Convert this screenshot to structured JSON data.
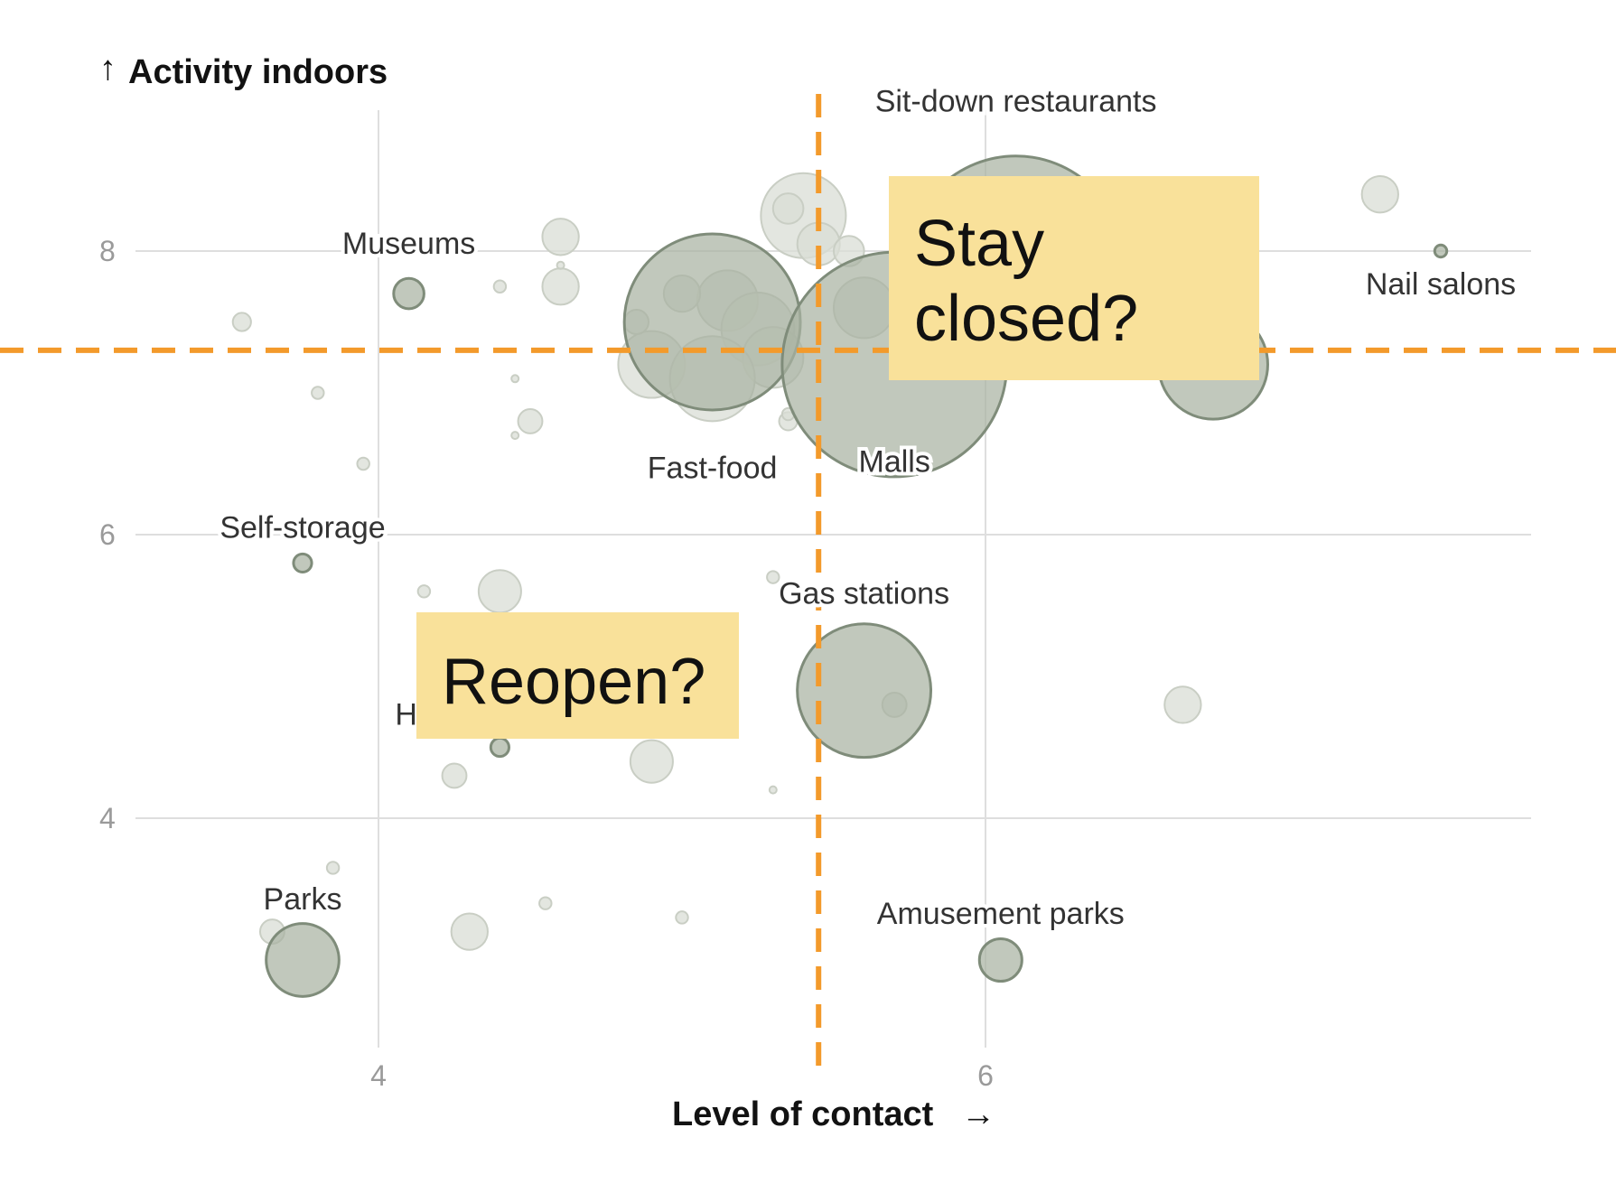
{
  "chart_data": {
    "type": "scatter",
    "ylabel": "Activity indoors",
    "xlabel": "Level of contact",
    "xlim": [
      3.2,
      7.8
    ],
    "ylim": [
      2.35,
      8.95
    ],
    "x_ticks": [
      "4",
      "6"
    ],
    "y_ticks": [
      "8",
      "6",
      "4"
    ],
    "thresholds": {
      "x": 5.45,
      "y": 7.3,
      "color": "#f39a2b"
    },
    "colors": {
      "highlight_fill": "#a9b3a2",
      "highlight_stroke": "#7f8c7a",
      "faded_fill": "#d9ddd5"
    },
    "highlighted": [
      {
        "label": "Museums",
        "x": 4.1,
        "y": 7.7,
        "r": 0.05
      },
      {
        "label": "Sit-down restaurants",
        "x": 6.1,
        "y": 7.9,
        "r": 0.36
      },
      {
        "label": "Nail salons",
        "x": 7.5,
        "y": 8.0,
        "r": 0.02
      },
      {
        "label": "Fast-food",
        "x": 5.1,
        "y": 7.5,
        "r": 0.29
      },
      {
        "label": "Malls",
        "x": 5.7,
        "y": 7.2,
        "r": 0.37
      },
      {
        "label": "",
        "x": 6.75,
        "y": 7.2,
        "r": 0.18
      },
      {
        "label": "Self-storage",
        "x": 3.75,
        "y": 5.8,
        "r": 0.03
      },
      {
        "label": "Gas stations",
        "x": 5.6,
        "y": 4.9,
        "r": 0.22
      },
      {
        "label": "H",
        "x": 4.4,
        "y": 4.5,
        "r": 0.03
      },
      {
        "label": "Parks",
        "x": 3.75,
        "y": 3.0,
        "r": 0.12
      },
      {
        "label": "Amusement parks",
        "x": 6.05,
        "y": 3.0,
        "r": 0.07
      }
    ],
    "background": [
      {
        "x": 4.6,
        "y": 8.1,
        "r": 0.06
      },
      {
        "x": 4.6,
        "y": 7.75,
        "r": 0.06
      },
      {
        "x": 3.55,
        "y": 7.5,
        "r": 0.03
      },
      {
        "x": 4.4,
        "y": 7.75,
        "r": 0.02
      },
      {
        "x": 3.8,
        "y": 7.0,
        "r": 0.02
      },
      {
        "x": 4.5,
        "y": 6.8,
        "r": 0.04
      },
      {
        "x": 3.95,
        "y": 6.5,
        "r": 0.02
      },
      {
        "x": 5.4,
        "y": 8.25,
        "r": 0.14
      },
      {
        "x": 5.35,
        "y": 8.3,
        "r": 0.05
      },
      {
        "x": 5.45,
        "y": 8.05,
        "r": 0.07
      },
      {
        "x": 5.55,
        "y": 8.0,
        "r": 0.05
      },
      {
        "x": 5.15,
        "y": 7.65,
        "r": 0.1
      },
      {
        "x": 5.25,
        "y": 7.45,
        "r": 0.12
      },
      {
        "x": 4.9,
        "y": 7.2,
        "r": 0.11
      },
      {
        "x": 5.3,
        "y": 7.25,
        "r": 0.1
      },
      {
        "x": 4.85,
        "y": 7.5,
        "r": 0.04
      },
      {
        "x": 5.0,
        "y": 7.7,
        "r": 0.06
      },
      {
        "x": 5.6,
        "y": 7.6,
        "r": 0.1
      },
      {
        "x": 5.35,
        "y": 6.8,
        "r": 0.03
      },
      {
        "x": 5.1,
        "y": 7.1,
        "r": 0.14
      },
      {
        "x": 7.3,
        "y": 8.4,
        "r": 0.06
      },
      {
        "x": 4.4,
        "y": 5.6,
        "r": 0.07
      },
      {
        "x": 4.15,
        "y": 5.6,
        "r": 0.02
      },
      {
        "x": 5.3,
        "y": 5.7,
        "r": 0.02
      },
      {
        "x": 4.25,
        "y": 4.3,
        "r": 0.04
      },
      {
        "x": 4.9,
        "y": 4.4,
        "r": 0.07
      },
      {
        "x": 5.3,
        "y": 4.2,
        "r": 0.01
      },
      {
        "x": 5.7,
        "y": 4.8,
        "r": 0.04
      },
      {
        "x": 6.65,
        "y": 4.8,
        "r": 0.06
      },
      {
        "x": 4.3,
        "y": 3.2,
        "r": 0.06
      },
      {
        "x": 4.55,
        "y": 3.4,
        "r": 0.02
      },
      {
        "x": 5.0,
        "y": 3.3,
        "r": 0.02
      },
      {
        "x": 3.65,
        "y": 3.2,
        "r": 0.04
      },
      {
        "x": 3.85,
        "y": 3.65,
        "r": 0.02
      },
      {
        "x": 4.45,
        "y": 6.7,
        "r": 0.01
      },
      {
        "x": 4.45,
        "y": 7.1,
        "r": 0.01
      },
      {
        "x": 4.6,
        "y": 7.9,
        "r": 0.01
      },
      {
        "x": 5.35,
        "y": 6.85,
        "r": 0.02
      }
    ]
  },
  "annotations": {
    "stay_closed_line1": "Stay",
    "stay_closed_line2": "closed?",
    "reopen": "Reopen?"
  },
  "axis_text": {
    "y_arrow": "↑",
    "x_arrow": "→"
  }
}
